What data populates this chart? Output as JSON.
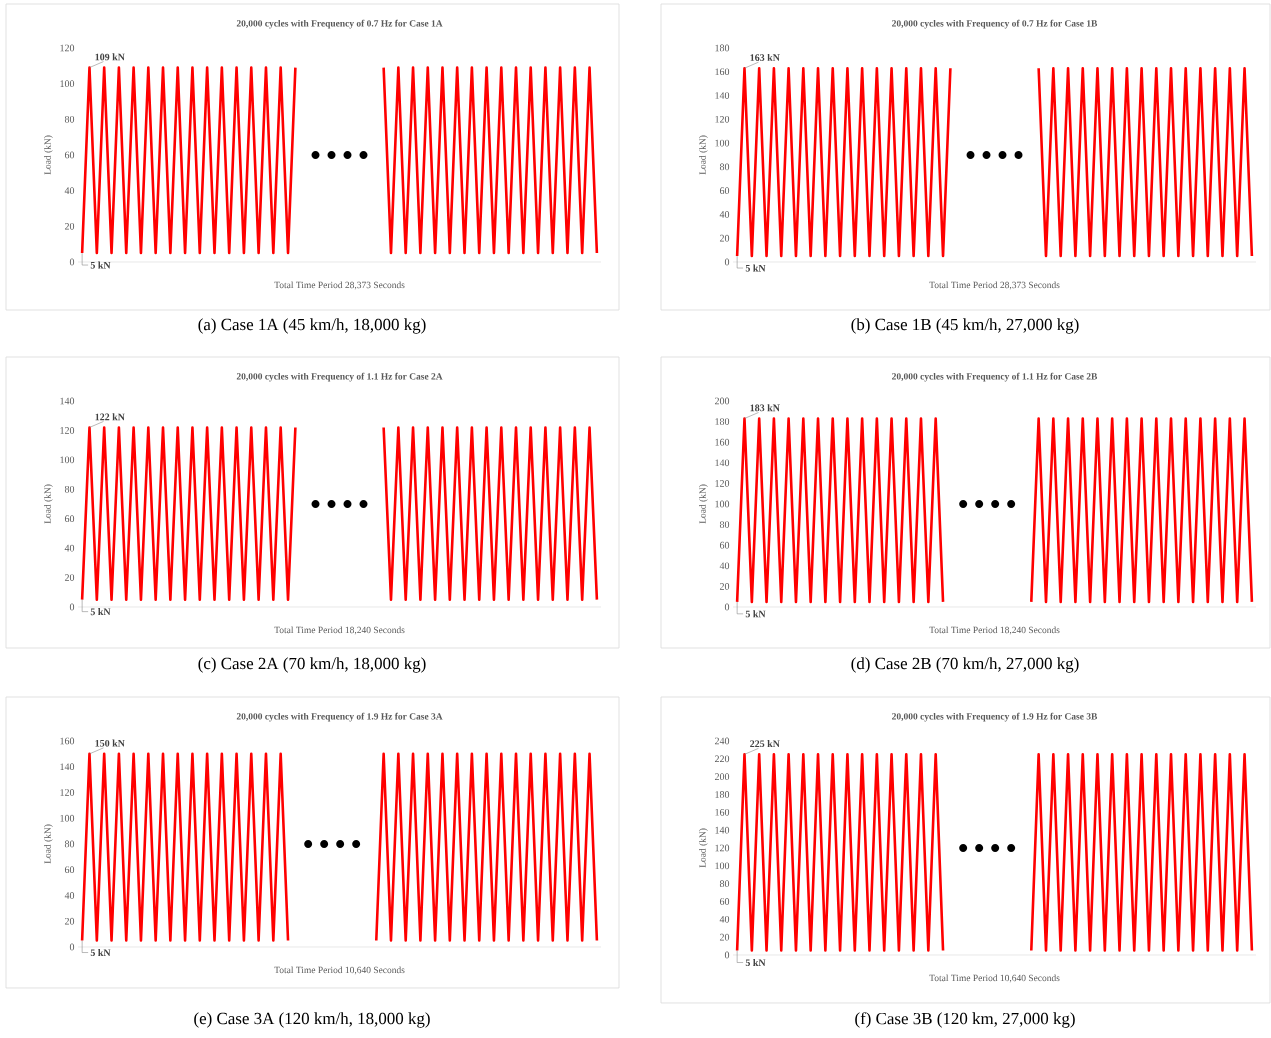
{
  "chart_data": [
    {
      "type": "line",
      "title": "20,000 cycles with Frequency of 0.7 Hz for Case 1A",
      "xlabel": "Total Time Period 28,373 Seconds",
      "ylabel": "Load (kN)",
      "tick_labels": "y",
      "line_style": "solid",
      "categories": [
        null,
        null,
        null,
        null,
        null,
        null,
        null,
        null,
        null,
        null,
        null,
        null,
        null,
        null,
        null,
        null,
        null,
        null,
        null,
        null,
        null,
        null,
        null,
        null,
        null,
        null,
        null,
        null,
        null,
        null,
        null,
        null,
        null,
        null,
        null,
        null,
        null,
        null,
        null,
        null,
        null,
        null,
        null,
        null,
        null,
        null,
        null,
        null,
        null,
        null,
        null,
        null,
        null,
        null,
        null,
        null,
        null,
        null,
        null,
        null,
        null,
        null,
        null,
        null,
        null,
        null,
        null,
        null,
        null,
        null,
        null
      ],
      "series": [
        {
          "color": "#ff0000",
          "values": [
            5,
            109,
            5,
            109,
            5,
            109,
            5,
            109,
            5,
            109,
            5,
            109,
            5,
            109,
            5,
            109,
            5,
            109,
            5,
            109,
            5,
            109,
            5,
            109,
            5,
            109,
            5,
            109,
            5,
            109,
            null,
            null,
            null,
            null,
            null,
            null,
            null,
            null,
            null,
            null,
            null,
            null,
            null,
            null,
            null,
            null,
            null,
            null,
            null,
            null,
            null,
            null,
            null,
            null,
            null,
            null,
            null,
            null,
            null,
            null,
            null,
            null,
            null,
            null,
            null,
            null,
            null,
            null,
            null,
            null,
            null
          ]
        },
        {
          "color": "#ff0000",
          "values": [
            null,
            null,
            null,
            null,
            null,
            null,
            null,
            null,
            null,
            null,
            null,
            null,
            null,
            null,
            null,
            null,
            null,
            null,
            null,
            null,
            null,
            null,
            null,
            null,
            null,
            null,
            null,
            null,
            null,
            null,
            null,
            null,
            null,
            null,
            null,
            null,
            null,
            null,
            null,
            null,
            null,
            109,
            5,
            109,
            5,
            109,
            5,
            109,
            5,
            109,
            5,
            109,
            5,
            109,
            5,
            109,
            5,
            109,
            5,
            109,
            5,
            109,
            5,
            109,
            5,
            109,
            5,
            109,
            5,
            109,
            5
          ]
        }
      ],
      "ylim": [
        0,
        120
      ],
      "yticks": [
        0,
        20,
        40,
        60,
        80,
        100,
        120
      ],
      "annotations": [
        {
          "text": "109 kN",
          "y": 109
        },
        {
          "text": "5 kN",
          "y": 5
        },
        "(a)   Case 1A (45 km/h, 18,000 kg)"
      ]
    },
    {
      "type": "line",
      "title": "20,000 cycles with Frequency of 0.7 Hz for Case 1B",
      "xlabel": "Total Time Period 28,373 Seconds",
      "ylabel": "Load (kN)",
      "tick_labels": "y",
      "line_style": "solid",
      "categories": [
        null,
        null,
        null,
        null,
        null,
        null,
        null,
        null,
        null,
        null,
        null,
        null,
        null,
        null,
        null,
        null,
        null,
        null,
        null,
        null,
        null,
        null,
        null,
        null,
        null,
        null,
        null,
        null,
        null,
        null,
        null,
        null,
        null,
        null,
        null,
        null,
        null,
        null,
        null,
        null,
        null,
        null,
        null,
        null,
        null,
        null,
        null,
        null,
        null,
        null,
        null,
        null,
        null,
        null,
        null,
        null,
        null,
        null,
        null,
        null,
        null,
        null,
        null,
        null,
        null,
        null,
        null,
        null,
        null,
        null,
        null
      ],
      "series": [
        {
          "color": "#ff0000",
          "values": [
            5,
            163,
            5,
            163,
            5,
            163,
            5,
            163,
            5,
            163,
            5,
            163,
            5,
            163,
            5,
            163,
            5,
            163,
            5,
            163,
            5,
            163,
            5,
            163,
            5,
            163,
            5,
            163,
            5,
            163,
            null,
            null,
            null,
            null,
            null,
            null,
            null,
            null,
            null,
            null,
            null,
            null,
            null,
            null,
            null,
            null,
            null,
            null,
            null,
            null,
            null,
            null,
            null,
            null,
            null,
            null,
            null,
            null,
            null,
            null,
            null,
            null,
            null,
            null,
            null,
            null,
            null,
            null,
            null,
            null,
            null
          ]
        },
        {
          "color": "#ff0000",
          "values": [
            null,
            null,
            null,
            null,
            null,
            null,
            null,
            null,
            null,
            null,
            null,
            null,
            null,
            null,
            null,
            null,
            null,
            null,
            null,
            null,
            null,
            null,
            null,
            null,
            null,
            null,
            null,
            null,
            null,
            null,
            null,
            null,
            null,
            null,
            null,
            null,
            null,
            null,
            null,
            null,
            null,
            163,
            5,
            163,
            5,
            163,
            5,
            163,
            5,
            163,
            5,
            163,
            5,
            163,
            5,
            163,
            5,
            163,
            5,
            163,
            5,
            163,
            5,
            163,
            5,
            163,
            5,
            163,
            5,
            163,
            5
          ]
        }
      ],
      "ylim": [
        0,
        180
      ],
      "yticks": [
        0,
        20,
        40,
        60,
        80,
        100,
        120,
        140,
        160,
        180
      ],
      "annotations": [
        {
          "text": "163 kN",
          "y": 163
        },
        {
          "text": "5 kN",
          "y": 5
        },
        "(b)   Case 1B (45 km/h, 27,000 kg)"
      ]
    },
    {
      "type": "line",
      "title": "20,000 cycles with Frequency of 1.1 Hz for Case 2A",
      "xlabel": "Total Time Period 18,240 Seconds",
      "ylabel": "Load (kN)",
      "tick_labels": "y",
      "line_style": "solid",
      "categories": [
        null,
        null,
        null,
        null,
        null,
        null,
        null,
        null,
        null,
        null,
        null,
        null,
        null,
        null,
        null,
        null,
        null,
        null,
        null,
        null,
        null,
        null,
        null,
        null,
        null,
        null,
        null,
        null,
        null,
        null,
        null,
        null,
        null,
        null,
        null,
        null,
        null,
        null,
        null,
        null,
        null,
        null,
        null,
        null,
        null,
        null,
        null,
        null,
        null,
        null,
        null,
        null,
        null,
        null,
        null,
        null,
        null,
        null,
        null,
        null,
        null,
        null,
        null,
        null,
        null,
        null,
        null,
        null,
        null,
        null,
        null
      ],
      "series": [
        {
          "color": "#ff0000",
          "values": [
            5,
            122,
            5,
            122,
            5,
            122,
            5,
            122,
            5,
            122,
            5,
            122,
            5,
            122,
            5,
            122,
            5,
            122,
            5,
            122,
            5,
            122,
            5,
            122,
            5,
            122,
            5,
            122,
            5,
            122,
            null,
            null,
            null,
            null,
            null,
            null,
            null,
            null,
            null,
            null,
            null,
            null,
            null,
            null,
            null,
            null,
            null,
            null,
            null,
            null,
            null,
            null,
            null,
            null,
            null,
            null,
            null,
            null,
            null,
            null,
            null,
            null,
            null,
            null,
            null,
            null,
            null,
            null,
            null,
            null,
            null
          ]
        },
        {
          "color": "#ff0000",
          "values": [
            null,
            null,
            null,
            null,
            null,
            null,
            null,
            null,
            null,
            null,
            null,
            null,
            null,
            null,
            null,
            null,
            null,
            null,
            null,
            null,
            null,
            null,
            null,
            null,
            null,
            null,
            null,
            null,
            null,
            null,
            null,
            null,
            null,
            null,
            null,
            null,
            null,
            null,
            null,
            null,
            null,
            122,
            5,
            122,
            5,
            122,
            5,
            122,
            5,
            122,
            5,
            122,
            5,
            122,
            5,
            122,
            5,
            122,
            5,
            122,
            5,
            122,
            5,
            122,
            5,
            122,
            5,
            122,
            5,
            122,
            5
          ]
        }
      ],
      "ylim": [
        0,
        140
      ],
      "yticks": [
        0,
        20,
        40,
        60,
        80,
        100,
        120,
        140
      ],
      "annotations": [
        {
          "text": "122 kN",
          "y": 122
        },
        {
          "text": "5 kN",
          "y": 5
        },
        "(c)   Case 2A (70 km/h, 18,000 kg)"
      ]
    },
    {
      "type": "line",
      "title": "20,000 cycles with Frequency of 1.1 Hz for Case 2B",
      "xlabel": "Total Time Period 18,240 Seconds",
      "ylabel": "Load (kN)",
      "tick_labels": "y",
      "line_style": "solid",
      "categories": [
        null,
        null,
        null,
        null,
        null,
        null,
        null,
        null,
        null,
        null,
        null,
        null,
        null,
        null,
        null,
        null,
        null,
        null,
        null,
        null,
        null,
        null,
        null,
        null,
        null,
        null,
        null,
        null,
        null,
        null,
        null,
        null,
        null,
        null,
        null,
        null,
        null,
        null,
        null,
        null,
        null,
        null,
        null,
        null,
        null,
        null,
        null,
        null,
        null,
        null,
        null,
        null,
        null,
        null,
        null,
        null,
        null,
        null,
        null,
        null,
        null,
        null,
        null,
        null,
        null,
        null,
        null,
        null,
        null,
        null,
        null
      ],
      "series": [
        {
          "color": "#ff0000",
          "values": [
            5,
            183,
            5,
            183,
            5,
            183,
            5,
            183,
            5,
            183,
            5,
            183,
            5,
            183,
            5,
            183,
            5,
            183,
            5,
            183,
            5,
            183,
            5,
            183,
            5,
            183,
            5,
            183,
            5,
            null,
            null,
            null,
            null,
            null,
            null,
            null,
            null,
            null,
            null,
            null,
            null,
            null,
            null,
            null,
            null,
            null,
            null,
            null,
            null,
            null,
            null,
            null,
            null,
            null,
            null,
            null,
            null,
            null,
            null,
            null,
            null,
            null,
            null,
            null,
            null,
            null,
            null,
            null,
            null,
            null,
            null
          ]
        },
        {
          "color": "#ff0000",
          "values": [
            null,
            null,
            null,
            null,
            null,
            null,
            null,
            null,
            null,
            null,
            null,
            null,
            null,
            null,
            null,
            null,
            null,
            null,
            null,
            null,
            null,
            null,
            null,
            null,
            null,
            null,
            null,
            null,
            null,
            null,
            null,
            null,
            null,
            null,
            null,
            null,
            null,
            null,
            null,
            null,
            5,
            183,
            5,
            183,
            5,
            183,
            5,
            183,
            5,
            183,
            5,
            183,
            5,
            183,
            5,
            183,
            5,
            183,
            5,
            183,
            5,
            183,
            5,
            183,
            5,
            183,
            5,
            183,
            5,
            183,
            5
          ]
        }
      ],
      "ylim": [
        0,
        200
      ],
      "yticks": [
        0,
        20,
        40,
        60,
        80,
        100,
        120,
        140,
        160,
        180,
        200
      ],
      "annotations": [
        {
          "text": "183 kN",
          "y": 183
        },
        {
          "text": "5 kN",
          "y": 5
        },
        "(d)   Case 2B (70 km/h, 27,000 kg)"
      ]
    },
    {
      "type": "line",
      "title": "20,000 cycles with Frequency of 1.9 Hz for Case 3A",
      "xlabel": "Total Time Period 10,640 Seconds",
      "ylabel": "Load (kN)",
      "tick_labels": "y",
      "line_style": "solid",
      "categories": [
        null,
        null,
        null,
        null,
        null,
        null,
        null,
        null,
        null,
        null,
        null,
        null,
        null,
        null,
        null,
        null,
        null,
        null,
        null,
        null,
        null,
        null,
        null,
        null,
        null,
        null,
        null,
        null,
        null,
        null,
        null,
        null,
        null,
        null,
        null,
        null,
        null,
        null,
        null,
        null,
        null,
        null,
        null,
        null,
        null,
        null,
        null,
        null,
        null,
        null,
        null,
        null,
        null,
        null,
        null,
        null,
        null,
        null,
        null,
        null,
        null,
        null,
        null,
        null,
        null,
        null,
        null,
        null,
        null,
        null,
        null
      ],
      "series": [
        {
          "color": "#ff0000",
          "values": [
            5,
            150,
            5,
            150,
            5,
            150,
            5,
            150,
            5,
            150,
            5,
            150,
            5,
            150,
            5,
            150,
            5,
            150,
            5,
            150,
            5,
            150,
            5,
            150,
            5,
            150,
            5,
            150,
            5,
            null,
            null,
            null,
            null,
            null,
            null,
            null,
            null,
            null,
            null,
            null,
            null,
            null,
            null,
            null,
            null,
            null,
            null,
            null,
            null,
            null,
            null,
            null,
            null,
            null,
            null,
            null,
            null,
            null,
            null,
            null,
            null,
            null,
            null,
            null,
            null,
            null,
            null,
            null,
            null,
            null,
            null
          ]
        },
        {
          "color": "#ff0000",
          "values": [
            null,
            null,
            null,
            null,
            null,
            null,
            null,
            null,
            null,
            null,
            null,
            null,
            null,
            null,
            null,
            null,
            null,
            null,
            null,
            null,
            null,
            null,
            null,
            null,
            null,
            null,
            null,
            null,
            null,
            null,
            null,
            null,
            null,
            null,
            null,
            null,
            null,
            null,
            null,
            null,
            5,
            150,
            5,
            150,
            5,
            150,
            5,
            150,
            5,
            150,
            5,
            150,
            5,
            150,
            5,
            150,
            5,
            150,
            5,
            150,
            5,
            150,
            5,
            150,
            5,
            150,
            5,
            150,
            5,
            150,
            5
          ]
        }
      ],
      "ylim": [
        0,
        160
      ],
      "yticks": [
        0,
        20,
        40,
        60,
        80,
        100,
        120,
        140,
        160
      ],
      "annotations": [
        {
          "text": "150 kN",
          "y": 150
        },
        {
          "text": "5 kN",
          "y": 5
        },
        "(e)   Case 3A (120 km/h, 18,000 kg)"
      ]
    },
    {
      "type": "line",
      "title": "20,000 cycles with Frequency of 1.9 Hz for Case 3B",
      "xlabel": "Total Time Period 10,640 Seconds",
      "ylabel": "Load (kN)",
      "tick_labels": "y",
      "line_style": "solid",
      "categories": [
        null,
        null,
        null,
        null,
        null,
        null,
        null,
        null,
        null,
        null,
        null,
        null,
        null,
        null,
        null,
        null,
        null,
        null,
        null,
        null,
        null,
        null,
        null,
        null,
        null,
        null,
        null,
        null,
        null,
        null,
        null,
        null,
        null,
        null,
        null,
        null,
        null,
        null,
        null,
        null,
        null,
        null,
        null,
        null,
        null,
        null,
        null,
        null,
        null,
        null,
        null,
        null,
        null,
        null,
        null,
        null,
        null,
        null,
        null,
        null,
        null,
        null,
        null,
        null,
        null,
        null,
        null,
        null,
        null,
        null,
        null
      ],
      "series": [
        {
          "color": "#ff0000",
          "values": [
            5,
            225,
            5,
            225,
            5,
            225,
            5,
            225,
            5,
            225,
            5,
            225,
            5,
            225,
            5,
            225,
            5,
            225,
            5,
            225,
            5,
            225,
            5,
            225,
            5,
            225,
            5,
            225,
            5,
            null,
            null,
            null,
            null,
            null,
            null,
            null,
            null,
            null,
            null,
            null,
            null,
            null,
            null,
            null,
            null,
            null,
            null,
            null,
            null,
            null,
            null,
            null,
            null,
            null,
            null,
            null,
            null,
            null,
            null,
            null,
            null,
            null,
            null,
            null,
            null,
            null,
            null,
            null,
            null,
            null,
            null
          ]
        },
        {
          "color": "#ff0000",
          "values": [
            null,
            null,
            null,
            null,
            null,
            null,
            null,
            null,
            null,
            null,
            null,
            null,
            null,
            null,
            null,
            null,
            null,
            null,
            null,
            null,
            null,
            null,
            null,
            null,
            null,
            null,
            null,
            null,
            null,
            null,
            null,
            null,
            null,
            null,
            null,
            null,
            null,
            null,
            null,
            null,
            5,
            225,
            5,
            225,
            5,
            225,
            5,
            225,
            5,
            225,
            5,
            225,
            5,
            225,
            5,
            225,
            5,
            225,
            5,
            225,
            5,
            225,
            5,
            225,
            5,
            225,
            5,
            225,
            5,
            225,
            5
          ]
        }
      ],
      "ylim": [
        0,
        240
      ],
      "yticks": [
        0,
        20,
        40,
        60,
        80,
        100,
        120,
        140,
        160,
        180,
        200,
        220,
        240
      ],
      "annotations": [
        {
          "text": "225 kN",
          "y": 225
        },
        {
          "text": "5 kN",
          "y": 5
        },
        "(f)   Case 3B (120 km, 27,000 kg)"
      ]
    }
  ]
}
